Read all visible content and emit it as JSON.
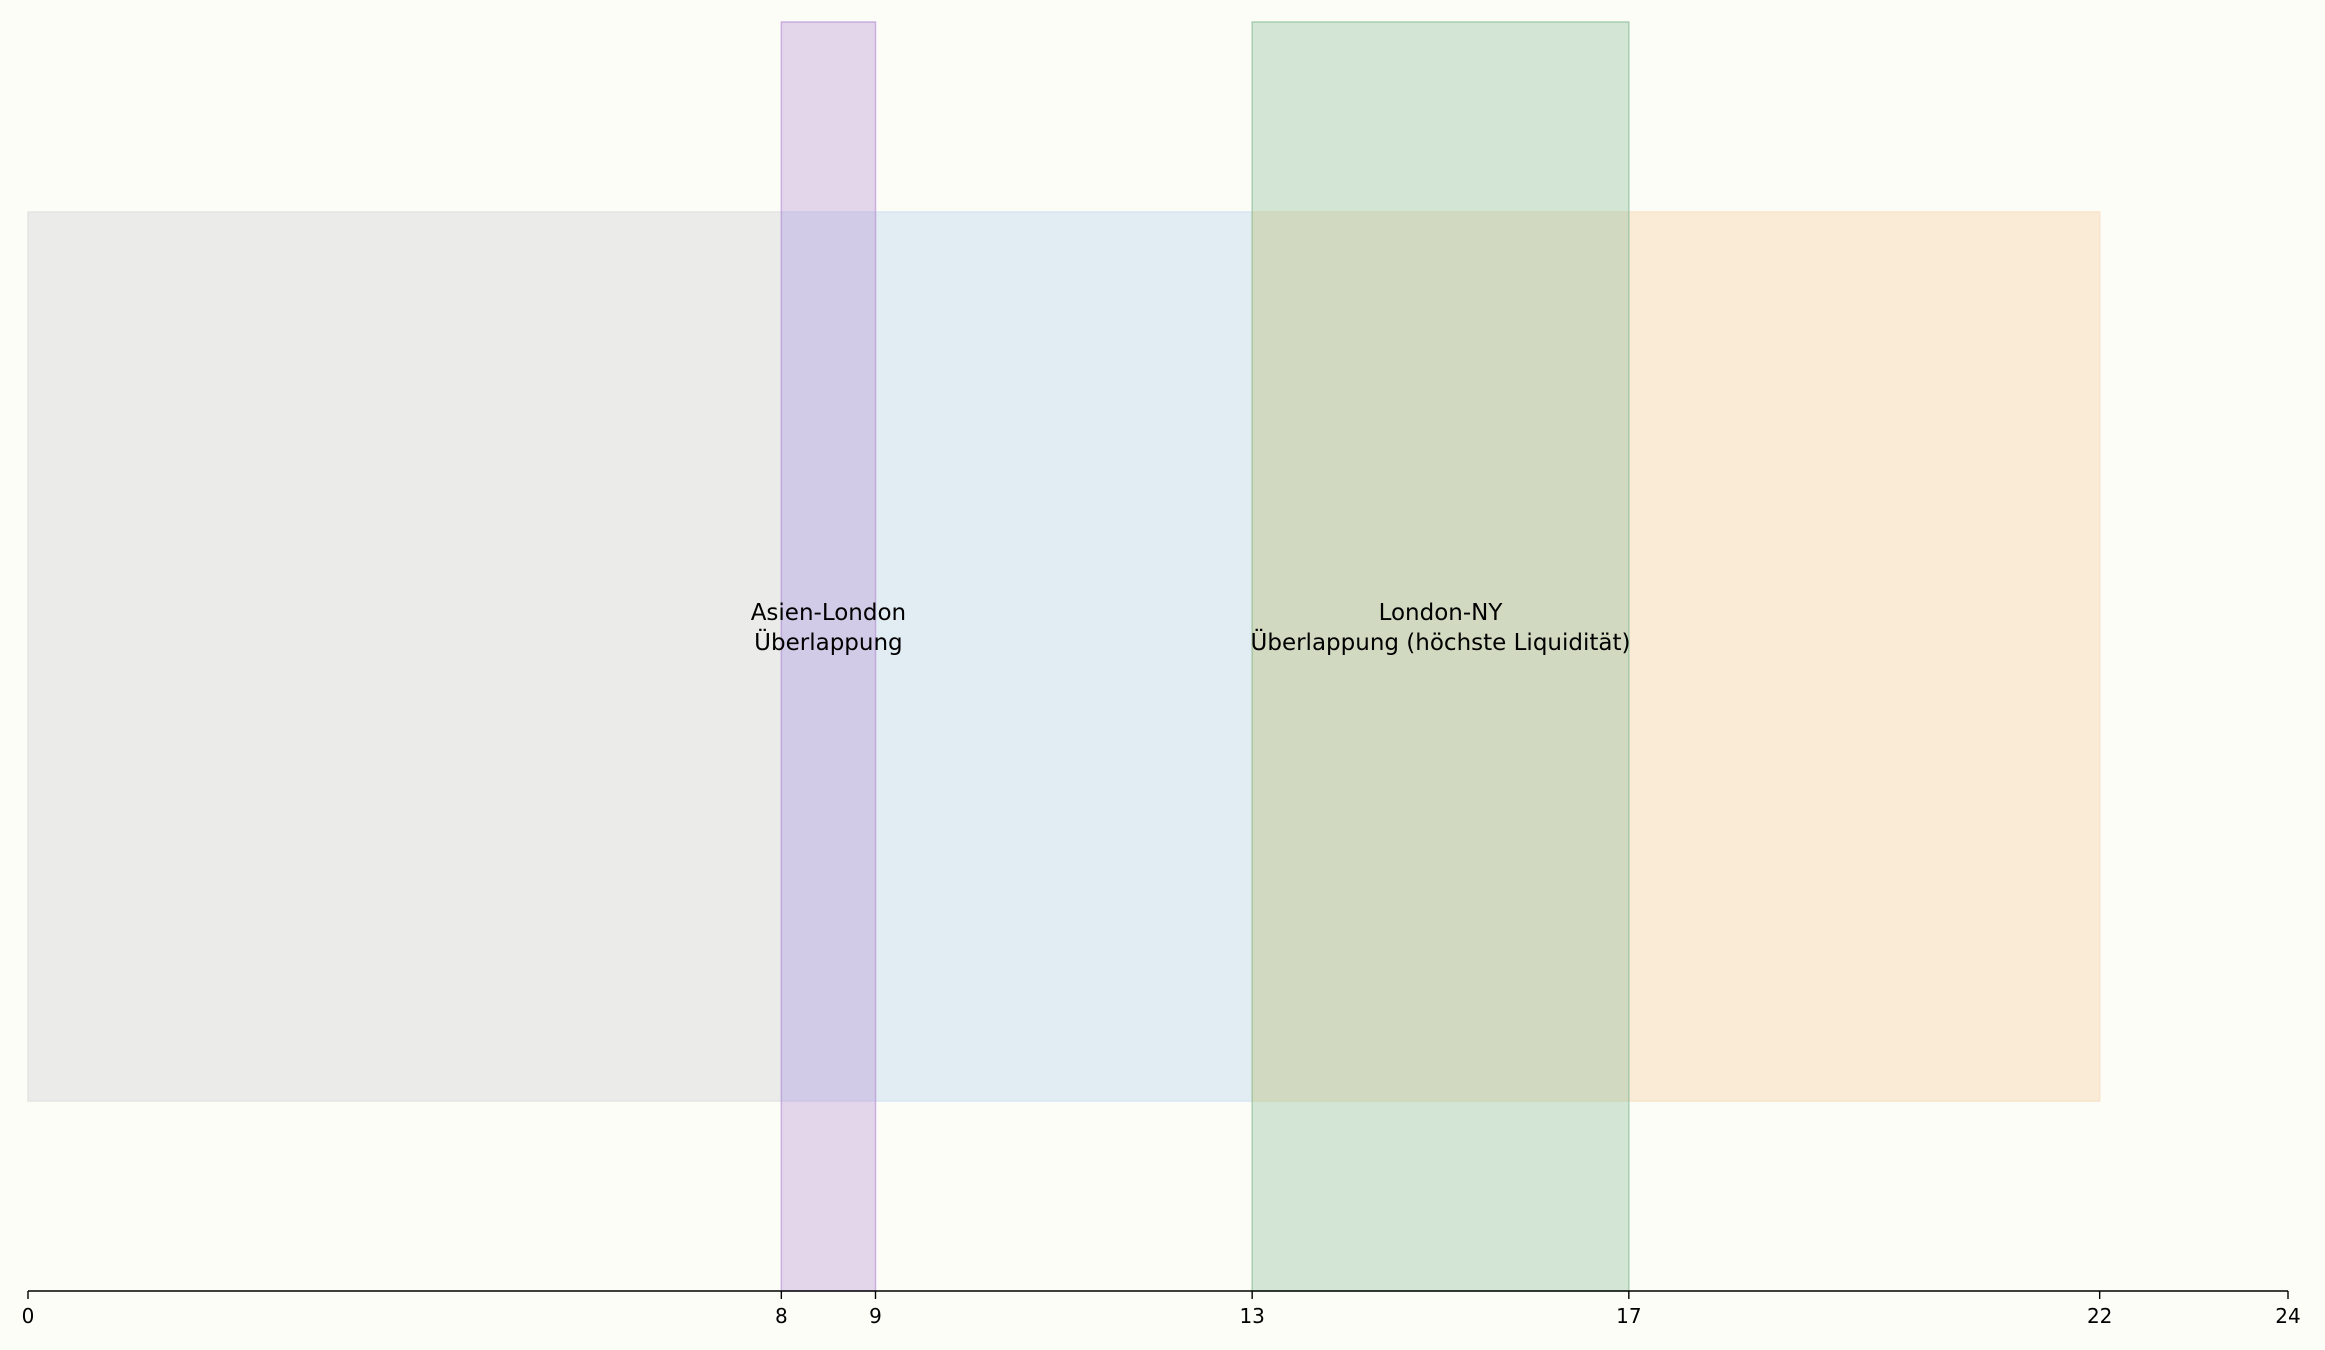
{
  "chart_data": {
    "type": "bar",
    "orientation": "horizontal-spans",
    "title": "",
    "xlabel": "",
    "ylabel": "",
    "xlim": [
      0,
      24
    ],
    "x_ticks": [
      0,
      8,
      9,
      13,
      17,
      22,
      24
    ],
    "grid": false,
    "legend": "none",
    "sessions": [
      {
        "start": 0,
        "end": 8,
        "color": "#e4e4e4"
      },
      {
        "start": 8,
        "end": 13,
        "color": "#d8e6f2"
      },
      {
        "start": 13,
        "end": 22,
        "color": "#f8e4cc"
      }
    ],
    "overlaps": [
      {
        "start": 8,
        "end": 9,
        "color": "#b895d6",
        "label_lines": [
          "Asien-London",
          "Überlappung"
        ]
      },
      {
        "start": 13,
        "end": 17,
        "color": "#8fbf9c",
        "label_lines": [
          "London-NY",
          "Überlappung (höchste Liquidität)"
        ]
      }
    ]
  }
}
